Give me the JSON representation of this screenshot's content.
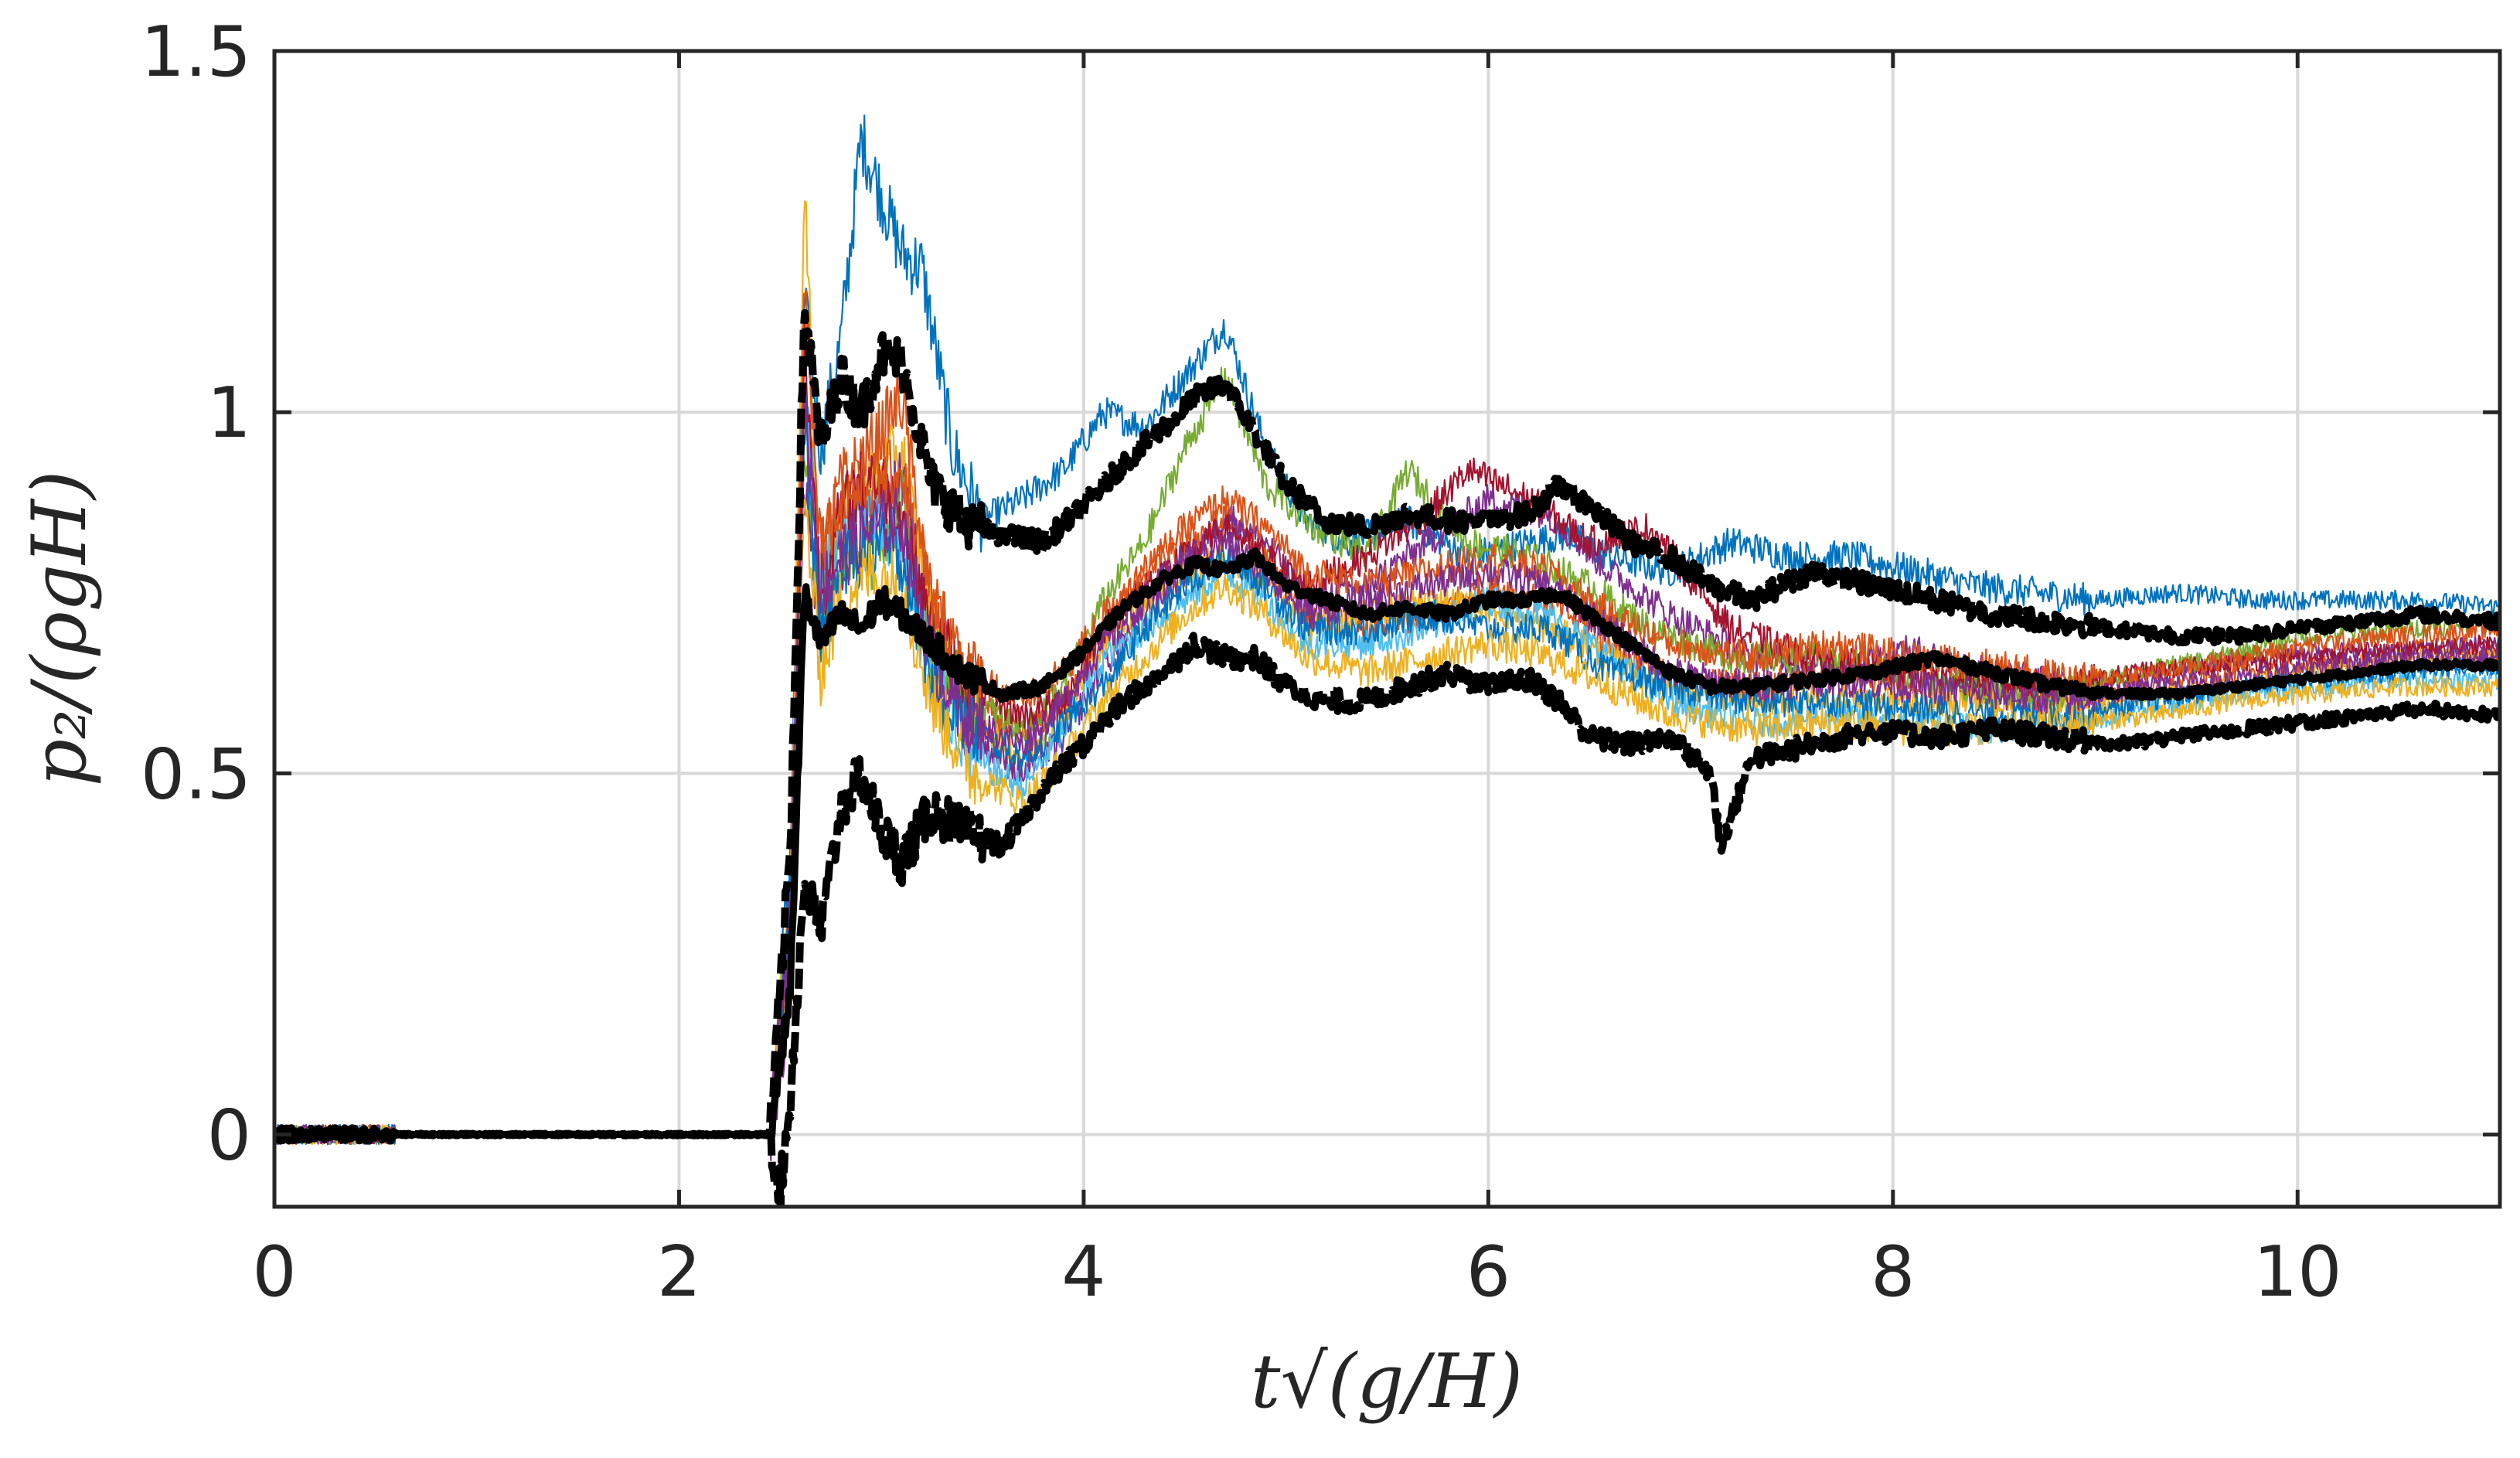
{
  "chart_data": {
    "type": "line",
    "title": "",
    "xlabel": "t√(g/H)",
    "ylabel": "p₂/(ρgH)",
    "xlim": [
      0,
      11
    ],
    "ylim": [
      -0.1,
      1.5
    ],
    "xticks": [
      0,
      2,
      4,
      6,
      8,
      10
    ],
    "yticks": [
      0,
      0.5,
      1,
      1.5
    ],
    "xtick_labels": [
      "0",
      "2",
      "4",
      "6",
      "8",
      "10"
    ],
    "ytick_labels": [
      "0",
      "0.5",
      "1",
      "1.5"
    ],
    "grid": true,
    "legend": "none",
    "ensemble_colors": [
      "#0072BD",
      "#D95319",
      "#EDB120",
      "#7E2F8E",
      "#77AC30",
      "#4DBEEE",
      "#A2142F"
    ],
    "summary_color": "#000000",
    "series": [
      {
        "role": "ensemble",
        "x": [
          0,
          2.45,
          2.55,
          2.62,
          2.7,
          2.8,
          2.9,
          3.0,
          3.1,
          3.2,
          3.35,
          3.5,
          3.7,
          3.9,
          4.1,
          4.3,
          4.5,
          4.7,
          4.9,
          5.1,
          5.3,
          5.6,
          5.9,
          6.2,
          6.4,
          6.6,
          6.9,
          7.2,
          7.5,
          7.8,
          8.1,
          8.4,
          8.7,
          9.0,
          9.4,
          9.8,
          10.2,
          10.6,
          11.0
        ],
        "y": [
          0,
          0,
          0.4,
          1.15,
          0.95,
          1.1,
          1.38,
          1.3,
          1.22,
          1.2,
          0.95,
          0.85,
          0.88,
          0.92,
          1.0,
          0.98,
          1.05,
          1.12,
          0.95,
          0.85,
          0.82,
          0.85,
          0.8,
          0.82,
          0.83,
          0.8,
          0.78,
          0.82,
          0.8,
          0.8,
          0.78,
          0.76,
          0.75,
          0.74,
          0.75,
          0.74,
          0.74,
          0.74,
          0.73
        ]
      },
      {
        "role": "ensemble",
        "x": [
          0,
          2.45,
          2.55,
          2.62,
          2.7,
          2.8,
          2.95,
          3.1,
          3.25,
          3.45,
          3.7,
          3.9,
          4.1,
          4.3,
          4.5,
          4.7,
          4.9,
          5.1,
          5.4,
          5.7,
          6.0,
          6.3,
          6.6,
          6.9,
          7.3,
          7.7,
          8.1,
          8.5,
          8.9,
          9.3,
          9.7,
          10.1,
          10.5,
          11.0
        ],
        "y": [
          0,
          0,
          0.3,
          1.0,
          0.8,
          0.9,
          0.95,
          1.02,
          0.72,
          0.6,
          0.55,
          0.6,
          0.7,
          0.78,
          0.82,
          0.85,
          0.8,
          0.72,
          0.7,
          0.72,
          0.76,
          0.74,
          0.68,
          0.63,
          0.62,
          0.64,
          0.63,
          0.61,
          0.6,
          0.62,
          0.64,
          0.65,
          0.65,
          0.66
        ]
      },
      {
        "role": "ensemble",
        "x": [
          0,
          2.45,
          2.55,
          2.62,
          2.7,
          2.8,
          2.95,
          3.1,
          3.25,
          3.45,
          3.7,
          3.9,
          4.1,
          4.3,
          4.5,
          4.7,
          4.9,
          5.1,
          5.4,
          5.7,
          6.0,
          6.3,
          6.6,
          6.9,
          7.3,
          7.7,
          8.1,
          8.5,
          8.9,
          9.3,
          9.7,
          10.1,
          10.5,
          11.0
        ],
        "y": [
          0,
          0,
          0.35,
          1.3,
          0.75,
          0.85,
          0.9,
          0.95,
          0.7,
          0.58,
          0.52,
          0.58,
          0.68,
          0.74,
          0.78,
          0.8,
          0.77,
          0.7,
          0.72,
          0.74,
          0.73,
          0.7,
          0.66,
          0.62,
          0.6,
          0.61,
          0.6,
          0.6,
          0.59,
          0.61,
          0.62,
          0.64,
          0.66,
          0.67
        ]
      },
      {
        "role": "ensemble",
        "x": [
          0,
          2.45,
          2.55,
          2.62,
          2.7,
          2.8,
          2.95,
          3.1,
          3.25,
          3.45,
          3.7,
          3.9,
          4.1,
          4.3,
          4.5,
          4.7,
          4.9,
          5.1,
          5.4,
          5.7,
          6.0,
          6.3,
          6.6,
          6.9,
          7.3,
          7.7,
          8.1,
          8.5,
          8.9,
          9.3,
          9.7,
          10.1,
          10.5,
          11.0
        ],
        "y": [
          0,
          0,
          0.2,
          0.9,
          0.7,
          0.8,
          0.85,
          0.9,
          0.68,
          0.55,
          0.5,
          0.55,
          0.65,
          0.72,
          0.78,
          0.86,
          0.82,
          0.74,
          0.76,
          0.82,
          0.88,
          0.86,
          0.78,
          0.72,
          0.66,
          0.65,
          0.67,
          0.64,
          0.62,
          0.63,
          0.66,
          0.67,
          0.67,
          0.68
        ]
      },
      {
        "role": "ensemble",
        "x": [
          0,
          2.45,
          2.55,
          2.62,
          2.7,
          2.8,
          2.95,
          3.1,
          3.25,
          3.45,
          3.7,
          3.9,
          4.1,
          4.3,
          4.5,
          4.7,
          4.9,
          5.1,
          5.4,
          5.6,
          5.9,
          6.2,
          6.5,
          6.8,
          7.2,
          7.6,
          8.0,
          8.4,
          8.8,
          9.2,
          9.6,
          10.0,
          10.5,
          11.0
        ],
        "y": [
          0,
          0,
          0.25,
          0.95,
          0.72,
          0.82,
          0.8,
          0.88,
          0.66,
          0.6,
          0.56,
          0.62,
          0.74,
          0.82,
          0.95,
          1.05,
          0.9,
          0.85,
          0.8,
          0.92,
          0.82,
          0.8,
          0.76,
          0.7,
          0.66,
          0.66,
          0.64,
          0.62,
          0.61,
          0.64,
          0.66,
          0.69,
          0.7,
          0.71
        ]
      },
      {
        "role": "ensemble",
        "x": [
          0,
          2.45,
          2.55,
          2.62,
          2.7,
          2.8,
          2.95,
          3.1,
          3.25,
          3.45,
          3.7,
          3.9,
          4.1,
          4.3,
          4.5,
          4.7,
          4.9,
          5.1,
          5.4,
          5.7,
          6.0,
          6.3,
          6.6,
          6.9,
          7.3,
          7.7,
          8.1,
          8.5,
          8.9,
          9.3,
          9.7,
          10.1,
          10.5,
          11.0
        ],
        "y": [
          0,
          0,
          0.3,
          1.05,
          0.78,
          0.84,
          0.86,
          0.82,
          0.64,
          0.52,
          0.48,
          0.56,
          0.66,
          0.7,
          0.74,
          0.78,
          0.74,
          0.68,
          0.68,
          0.7,
          0.74,
          0.72,
          0.66,
          0.6,
          0.57,
          0.58,
          0.57,
          0.56,
          0.57,
          0.59,
          0.61,
          0.62,
          0.63,
          0.63
        ]
      },
      {
        "role": "ensemble",
        "x": [
          0,
          2.45,
          2.55,
          2.62,
          2.7,
          2.8,
          2.95,
          3.1,
          3.25,
          3.45,
          3.7,
          3.9,
          4.1,
          4.3,
          4.5,
          4.7,
          4.9,
          5.1,
          5.4,
          5.7,
          5.9,
          6.2,
          6.5,
          6.8,
          7.2,
          7.6,
          8.0,
          8.4,
          8.8,
          9.2,
          9.6,
          10.0,
          10.5,
          11.0
        ],
        "y": [
          0,
          0,
          0.28,
          1.1,
          0.74,
          0.86,
          0.92,
          0.86,
          0.7,
          0.62,
          0.58,
          0.6,
          0.7,
          0.76,
          0.8,
          0.84,
          0.8,
          0.76,
          0.8,
          0.86,
          0.92,
          0.88,
          0.82,
          0.84,
          0.7,
          0.66,
          0.64,
          0.63,
          0.62,
          0.64,
          0.65,
          0.66,
          0.67,
          0.68
        ]
      },
      {
        "role": "ensemble",
        "x": [
          0,
          2.45,
          2.55,
          2.62,
          2.7,
          2.8,
          2.95,
          3.1,
          3.25,
          3.45,
          3.7,
          3.9,
          4.1,
          4.3,
          4.5,
          4.7,
          4.9,
          5.1,
          5.4,
          5.7,
          6.0,
          6.3,
          6.6,
          6.9,
          7.3,
          7.7,
          8.1,
          8.5,
          8.9,
          9.3,
          9.7,
          10.1,
          10.5,
          11.0
        ],
        "y": [
          0,
          0,
          0.33,
          0.98,
          0.68,
          0.78,
          0.82,
          0.8,
          0.62,
          0.56,
          0.52,
          0.57,
          0.62,
          0.7,
          0.76,
          0.8,
          0.76,
          0.7,
          0.7,
          0.72,
          0.7,
          0.7,
          0.64,
          0.62,
          0.6,
          0.6,
          0.59,
          0.58,
          0.58,
          0.6,
          0.62,
          0.63,
          0.64,
          0.65
        ]
      },
      {
        "role": "ensemble",
        "x": [
          0,
          2.45,
          2.55,
          2.62,
          2.7,
          2.8,
          2.95,
          3.1,
          3.25,
          3.45,
          3.7,
          3.9,
          4.1,
          4.3,
          4.5,
          4.7,
          4.9,
          5.1,
          5.4,
          5.7,
          6.0,
          6.3,
          6.6,
          6.9,
          7.3,
          7.7,
          8.1,
          8.5,
          8.9,
          9.3,
          9.7,
          10.1,
          10.5,
          11.0
        ],
        "y": [
          0,
          0,
          0.22,
          1.2,
          0.82,
          0.88,
          0.9,
          0.92,
          0.74,
          0.64,
          0.6,
          0.64,
          0.72,
          0.78,
          0.84,
          0.88,
          0.84,
          0.78,
          0.76,
          0.78,
          0.8,
          0.78,
          0.72,
          0.68,
          0.66,
          0.68,
          0.66,
          0.65,
          0.63,
          0.64,
          0.66,
          0.68,
          0.69,
          0.7
        ]
      },
      {
        "role": "ensemble",
        "x": [
          0,
          2.45,
          2.55,
          2.62,
          2.7,
          2.8,
          2.95,
          3.1,
          3.25,
          3.45,
          3.7,
          3.9,
          4.1,
          4.3,
          4.5,
          4.7,
          4.9,
          5.1,
          5.4,
          5.7,
          6.0,
          6.3,
          6.6,
          6.9,
          7.3,
          7.7,
          8.1,
          8.5,
          8.9,
          9.3,
          9.7,
          10.1,
          10.5,
          11.0
        ],
        "y": [
          0,
          0,
          0.27,
          0.88,
          0.64,
          0.74,
          0.78,
          0.76,
          0.6,
          0.5,
          0.46,
          0.52,
          0.6,
          0.66,
          0.72,
          0.76,
          0.72,
          0.66,
          0.64,
          0.66,
          0.68,
          0.66,
          0.62,
          0.58,
          0.56,
          0.57,
          0.56,
          0.56,
          0.57,
          0.58,
          0.6,
          0.61,
          0.62,
          0.62
        ]
      },
      {
        "role": "ensemble",
        "x": [
          0,
          2.45,
          2.55,
          2.62,
          2.7,
          2.8,
          2.95,
          3.1,
          3.25,
          3.45,
          3.7,
          3.9,
          4.1,
          4.3,
          4.5,
          4.7,
          4.9,
          5.1,
          5.4,
          5.7,
          6.0,
          6.3,
          6.6,
          6.9,
          7.3,
          7.7,
          8.1,
          8.5,
          8.9,
          9.3,
          9.7,
          10.1,
          10.5,
          11.0
        ],
        "y": [
          0,
          0,
          0.31,
          1.02,
          0.76,
          0.8,
          0.84,
          0.85,
          0.66,
          0.57,
          0.54,
          0.6,
          0.68,
          0.74,
          0.8,
          0.82,
          0.78,
          0.72,
          0.74,
          0.76,
          0.78,
          0.76,
          0.7,
          0.64,
          0.62,
          0.63,
          0.62,
          0.61,
          0.6,
          0.62,
          0.63,
          0.65,
          0.66,
          0.66
        ]
      },
      {
        "role": "upper-envelope",
        "x": [
          0,
          0.5,
          1.0,
          2.0,
          2.45,
          2.55,
          2.62,
          2.7,
          2.8,
          2.9,
          3.0,
          3.1,
          3.25,
          3.4,
          3.6,
          3.8,
          4.0,
          4.2,
          4.4,
          4.55,
          4.7,
          4.85,
          5.0,
          5.2,
          5.4,
          5.6,
          5.8,
          6.0,
          6.2,
          6.35,
          6.5,
          6.7,
          6.9,
          7.1,
          7.3,
          7.6,
          7.9,
          8.2,
          8.5,
          8.8,
          9.1,
          9.4,
          9.7,
          10.0,
          10.3,
          10.6,
          11.0
        ],
        "y": [
          0,
          0,
          0,
          0,
          0,
          0.4,
          1.15,
          0.95,
          1.05,
          1.0,
          1.08,
          1.07,
          0.9,
          0.85,
          0.83,
          0.82,
          0.87,
          0.93,
          0.98,
          1.02,
          1.04,
          0.97,
          0.9,
          0.85,
          0.84,
          0.86,
          0.85,
          0.85,
          0.86,
          0.9,
          0.87,
          0.82,
          0.8,
          0.76,
          0.74,
          0.78,
          0.76,
          0.74,
          0.72,
          0.71,
          0.7,
          0.69,
          0.69,
          0.7,
          0.71,
          0.72,
          0.71
        ]
      },
      {
        "role": "mean",
        "x": [
          0,
          0.5,
          1.0,
          2.0,
          2.45,
          2.55,
          2.62,
          2.7,
          2.8,
          2.9,
          3.0,
          3.1,
          3.25,
          3.4,
          3.6,
          3.8,
          4.0,
          4.2,
          4.4,
          4.55,
          4.7,
          4.85,
          5.0,
          5.2,
          5.4,
          5.6,
          5.8,
          6.0,
          6.2,
          6.35,
          6.5,
          6.7,
          6.9,
          7.1,
          7.3,
          7.6,
          7.9,
          8.2,
          8.5,
          8.8,
          9.1,
          9.4,
          9.7,
          10.0,
          10.3,
          10.6,
          11.0
        ],
        "y": [
          0,
          0,
          0,
          0,
          0,
          0.2,
          0.75,
          0.68,
          0.72,
          0.7,
          0.74,
          0.72,
          0.68,
          0.64,
          0.61,
          0.62,
          0.67,
          0.73,
          0.77,
          0.79,
          0.78,
          0.8,
          0.76,
          0.74,
          0.72,
          0.73,
          0.72,
          0.74,
          0.74,
          0.75,
          0.72,
          0.68,
          0.64,
          0.62,
          0.62,
          0.63,
          0.64,
          0.66,
          0.64,
          0.62,
          0.61,
          0.61,
          0.62,
          0.63,
          0.64,
          0.65,
          0.65
        ]
      },
      {
        "role": "lower-envelope",
        "x": [
          0,
          0.5,
          1.0,
          2.0,
          2.45,
          2.5,
          2.55,
          2.62,
          2.7,
          2.8,
          2.9,
          3.0,
          3.1,
          3.25,
          3.4,
          3.6,
          3.8,
          4.0,
          4.2,
          4.4,
          4.55,
          4.7,
          4.85,
          5.0,
          5.2,
          5.4,
          5.6,
          5.8,
          6.0,
          6.2,
          6.35,
          6.5,
          6.7,
          6.9,
          7.1,
          7.15,
          7.3,
          7.6,
          7.9,
          8.2,
          8.5,
          8.8,
          9.1,
          9.4,
          9.7,
          10.0,
          10.3,
          10.6,
          11.0
        ],
        "y": [
          0,
          0,
          0,
          0,
          0,
          -0.08,
          0.05,
          0.35,
          0.28,
          0.45,
          0.5,
          0.42,
          0.38,
          0.45,
          0.42,
          0.4,
          0.48,
          0.54,
          0.6,
          0.64,
          0.68,
          0.66,
          0.66,
          0.62,
          0.6,
          0.6,
          0.62,
          0.64,
          0.62,
          0.63,
          0.6,
          0.55,
          0.54,
          0.55,
          0.5,
          0.4,
          0.52,
          0.54,
          0.56,
          0.55,
          0.56,
          0.55,
          0.54,
          0.55,
          0.56,
          0.57,
          0.58,
          0.59,
          0.58
        ]
      }
    ]
  }
}
